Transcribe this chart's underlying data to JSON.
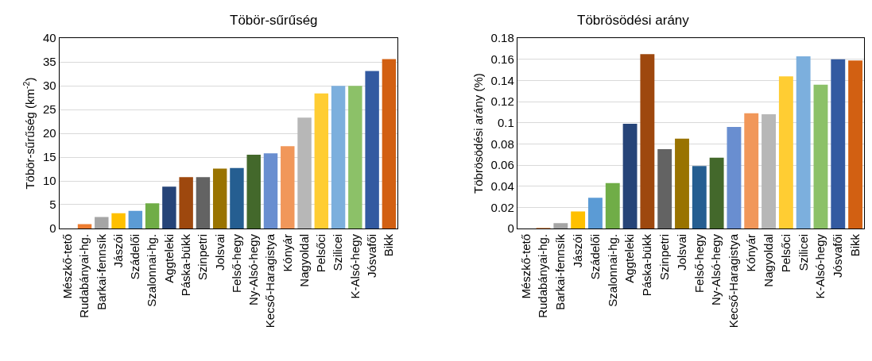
{
  "chart_data": [
    {
      "type": "bar",
      "title": "Töbör-sűrűség",
      "ylabel": "Töbör-sűrűség (km$^{-2}$)",
      "categories": [
        "Mészkő-tető",
        "Rudabányai-hg.",
        "Barkai-fennsík",
        "Jászói",
        "Szádelői",
        "Szalonnai-hg.",
        "Aggteleki",
        "Páska-bükk",
        "Szinpetri",
        "Jolsvai",
        "Felső-hegy",
        "Ny-Alsó-hegy",
        "Kecső-Haragistya",
        "Kónyár",
        "Nagyoldal",
        "Pelsőci",
        "Szilicei",
        "K-Alsó-hegy",
        "Jósvafői",
        "Bikk"
      ],
      "values": [
        0,
        0.9,
        2.4,
        3.2,
        3.7,
        5.3,
        8.8,
        10.8,
        10.8,
        12.6,
        12.7,
        15.5,
        15.8,
        17.3,
        23.3,
        28.4,
        30.0,
        30.0,
        33.1,
        35.6
      ],
      "colors": [
        "#4472c4",
        "#ed7d31",
        "#a5a5a5",
        "#ffc000",
        "#5b9bd5",
        "#70ad47",
        "#264478",
        "#9e480e",
        "#636363",
        "#997300",
        "#255e91",
        "#43682b",
        "#698ed0",
        "#f1975a",
        "#b7b7b7",
        "#ffcd33",
        "#7cafdd",
        "#8cc168",
        "#335aa1",
        "#d26012"
      ],
      "ylim": [
        0,
        40
      ],
      "yticks": [
        0,
        5,
        10,
        15,
        20,
        25,
        30,
        35,
        40
      ],
      "grid": "y"
    },
    {
      "type": "bar",
      "title": "Töbrösödési arány",
      "ylabel": "Töbrösödési arány (%)",
      "categories": [
        "Mészkő-tető",
        "Rudabányai-hg.",
        "Barkai-fennsík",
        "Jászói",
        "Szádelői",
        "Szalonnai-hg.",
        "Aggteleki",
        "Páska-bükk",
        "Szinpetri",
        "Jolsvai",
        "Felső-hegy",
        "Ny-Alsó-hegy",
        "Kecső-Haragistya",
        "Kónyár",
        "Nagyoldal",
        "Pelsőci",
        "Szilicei",
        "K-Alsó-hegy",
        "Jósvafői",
        "Bikk"
      ],
      "values": [
        0,
        0.0005,
        0.005,
        0.016,
        0.029,
        0.043,
        0.099,
        0.165,
        0.075,
        0.085,
        0.059,
        0.067,
        0.096,
        0.109,
        0.108,
        0.144,
        0.163,
        0.136,
        0.16,
        0.159
      ],
      "colors": [
        "#4472c4",
        "#ed7d31",
        "#a5a5a5",
        "#ffc000",
        "#5b9bd5",
        "#70ad47",
        "#264478",
        "#9e480e",
        "#636363",
        "#997300",
        "#255e91",
        "#43682b",
        "#698ed0",
        "#f1975a",
        "#b7b7b7",
        "#ffcd33",
        "#7cafdd",
        "#8cc168",
        "#335aa1",
        "#d26012"
      ],
      "ylim": [
        0,
        0.18
      ],
      "yticks": [
        0,
        0.02,
        0.04,
        0.06,
        0.08,
        0.1,
        0.12,
        0.14,
        0.16,
        0.18
      ],
      "grid": "y"
    }
  ]
}
